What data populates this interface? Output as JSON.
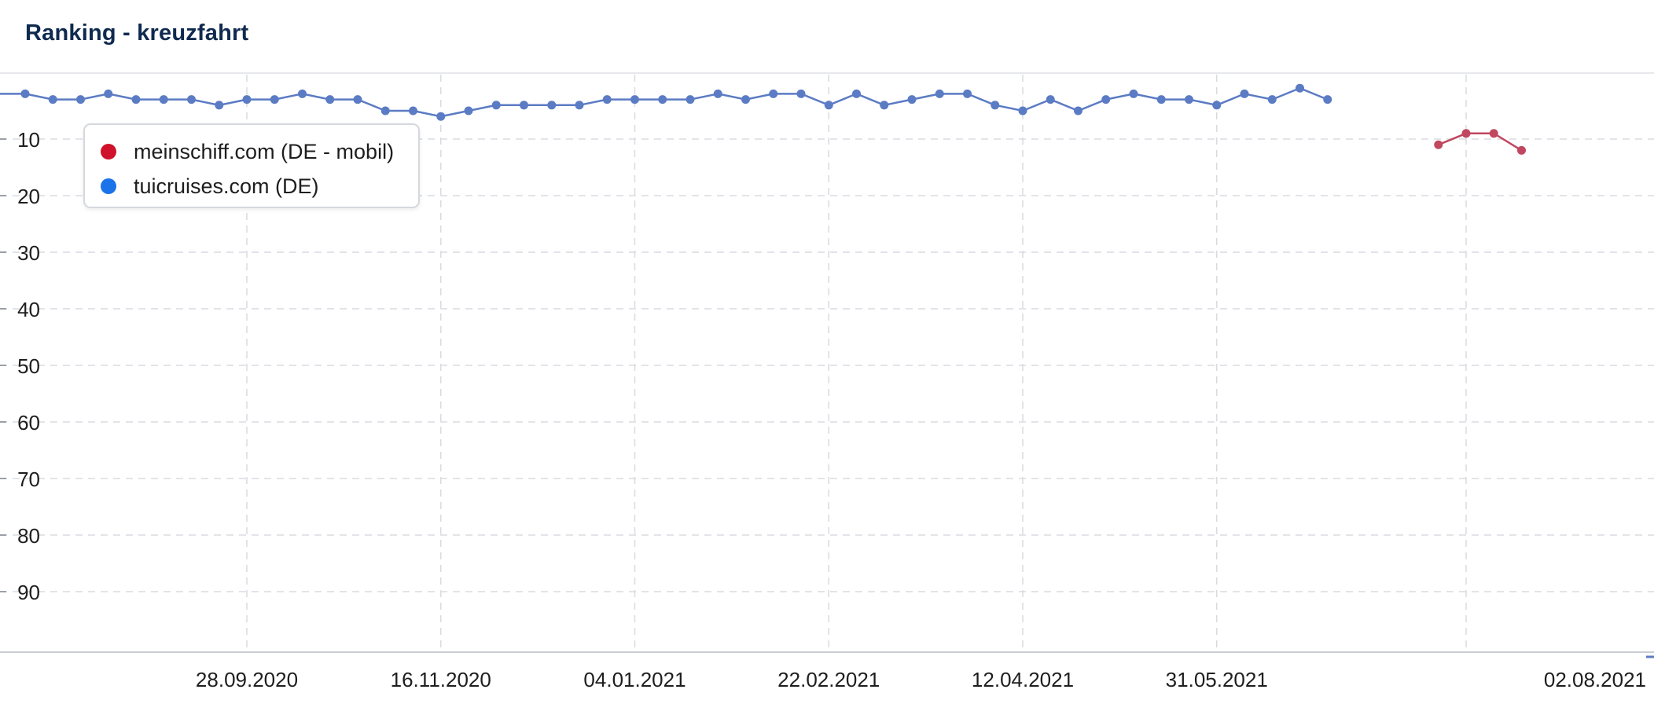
{
  "title": "Ranking - kreuzfahrt",
  "chart_data": {
    "type": "line",
    "title": "Ranking - kreuzfahrt",
    "xlabel": "",
    "ylabel": "",
    "y_axis": {
      "min": 0,
      "max": 100,
      "inverted": true,
      "ticks": [
        10,
        20,
        30,
        40,
        50,
        60,
        70,
        80,
        90
      ]
    },
    "x_ticks": [
      "28.09.2020",
      "16.11.2020",
      "04.01.2021",
      "22.02.2021",
      "12.04.2021",
      "31.05.2021",
      "02.08.2021"
    ],
    "grid": true,
    "legend": "top-left",
    "series": [
      {
        "name": "meinschiff.com (DE - mobil)",
        "color": "#d0112b",
        "line_color": "#c0475f",
        "x": [
          "26.07.2021",
          "02.08.2021",
          "09.08.2021",
          "16.08.2021"
        ],
        "y": [
          11,
          9,
          9,
          12
        ]
      },
      {
        "name": "tuicruises.com (DE)",
        "color": "#1a73e8",
        "line_color": "#5b7bc4",
        "x": [
          "03.08.2020",
          "10.08.2020",
          "17.08.2020",
          "24.08.2020",
          "31.08.2020",
          "07.09.2020",
          "14.09.2020",
          "21.09.2020",
          "28.09.2020",
          "05.10.2020",
          "12.10.2020",
          "19.10.2020",
          "26.10.2020",
          "02.11.2020",
          "09.11.2020",
          "16.11.2020",
          "23.11.2020",
          "30.11.2020",
          "07.12.2020",
          "14.12.2020",
          "21.12.2020",
          "28.12.2020",
          "04.01.2021",
          "11.01.2021",
          "18.01.2021",
          "25.01.2021",
          "01.02.2021",
          "08.02.2021",
          "15.02.2021",
          "22.02.2021",
          "01.03.2021",
          "08.03.2021",
          "15.03.2021",
          "22.03.2021",
          "29.03.2021",
          "05.04.2021",
          "12.04.2021",
          "19.04.2021",
          "26.04.2021",
          "03.05.2021",
          "10.05.2021",
          "17.05.2021",
          "24.05.2021",
          "31.05.2021",
          "07.06.2021",
          "14.06.2021",
          "21.06.2021",
          "28.06.2021"
        ],
        "y": [
          2,
          3,
          3,
          2,
          3,
          3,
          3,
          4,
          3,
          3,
          2,
          3,
          3,
          5,
          5,
          6,
          5,
          4,
          4,
          4,
          4,
          3,
          3,
          3,
          3,
          2,
          3,
          2,
          2,
          4,
          2,
          4,
          3,
          2,
          2,
          4,
          5,
          3,
          5,
          3,
          2,
          3,
          3,
          4,
          2,
          3,
          1,
          3
        ]
      }
    ]
  }
}
